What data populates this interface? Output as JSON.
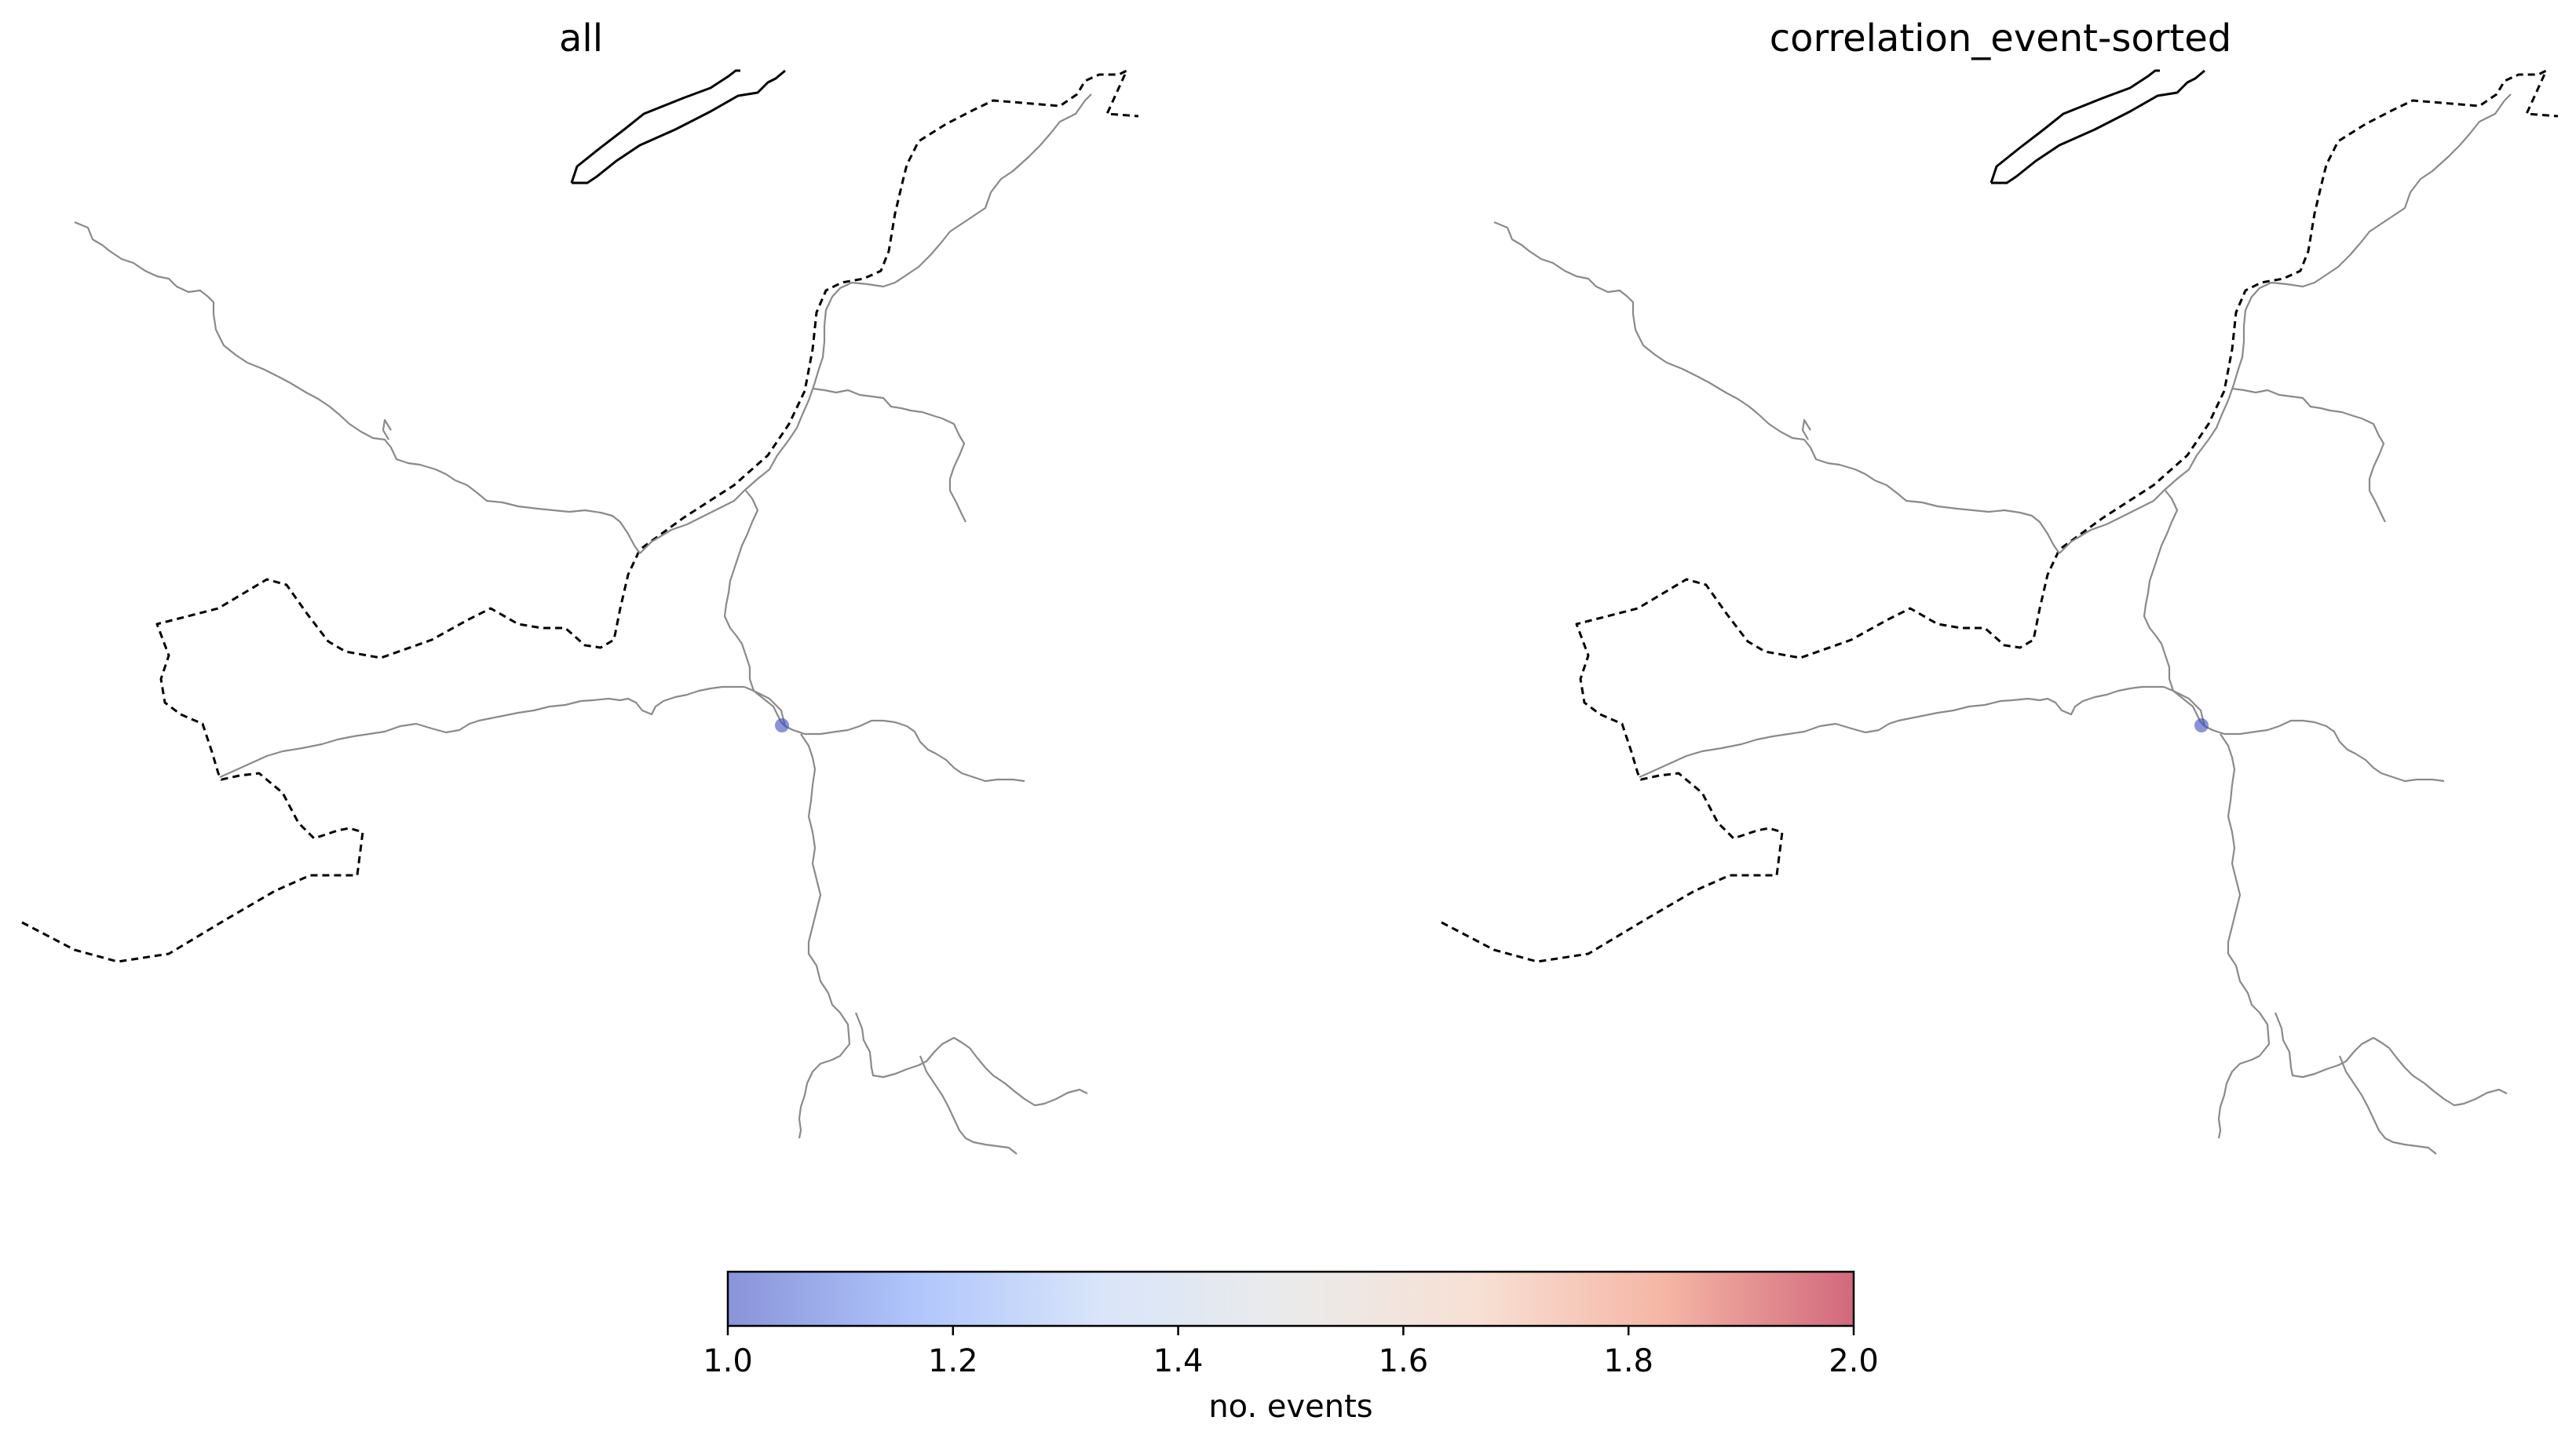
{
  "panels": [
    {
      "title": "all",
      "points": [
        {
          "value": 1.0
        }
      ]
    },
    {
      "title": "correlation_event-sorted",
      "points": [
        {
          "value": 1.0
        }
      ]
    }
  ],
  "colorbar": {
    "label": "no. events",
    "min": 1.0,
    "max": 2.0,
    "ticks": [
      "1.0",
      "1.2",
      "1.4",
      "1.6",
      "1.8",
      "2.0"
    ],
    "colormap": "coolwarm",
    "colors": [
      "#3b4cc0",
      "#7b9ff9",
      "#c0d4f5",
      "#dddddd",
      "#f2cbb7",
      "#ee8468",
      "#b40426"
    ],
    "alpha": 0.6
  },
  "styles": {
    "river_color": "#8a8a8a",
    "border_color": "#000000",
    "lake_color": "#000000"
  }
}
